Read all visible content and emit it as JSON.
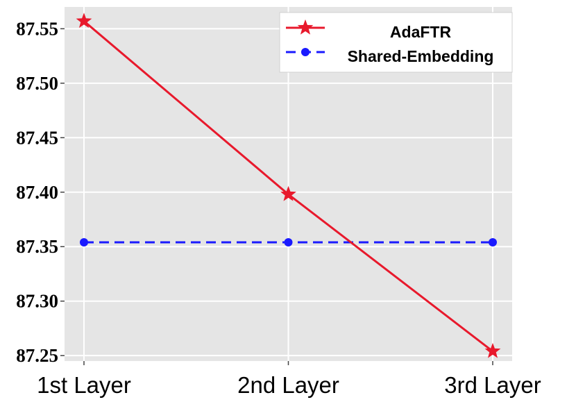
{
  "chart_data": {
    "type": "line",
    "categories": [
      "1st Layer",
      "2nd Layer",
      "3rd Layer"
    ],
    "series": [
      {
        "name": "AdaFTR",
        "values": [
          87.557,
          87.398,
          87.254
        ],
        "color": "#e8192c",
        "marker": "star",
        "linestyle": "solid"
      },
      {
        "name": "Shared-Embedding",
        "values": [
          87.354,
          87.354,
          87.354
        ],
        "color": "#1a1aff",
        "marker": "circle",
        "linestyle": "dashed"
      }
    ],
    "yticks": [
      "87.25",
      "87.30",
      "87.35",
      "87.40",
      "87.45",
      "87.50",
      "87.55"
    ],
    "ylim": [
      87.245,
      87.57
    ],
    "grid": true,
    "plot_background": "#e5e5e5",
    "legend_position": "top-right"
  }
}
